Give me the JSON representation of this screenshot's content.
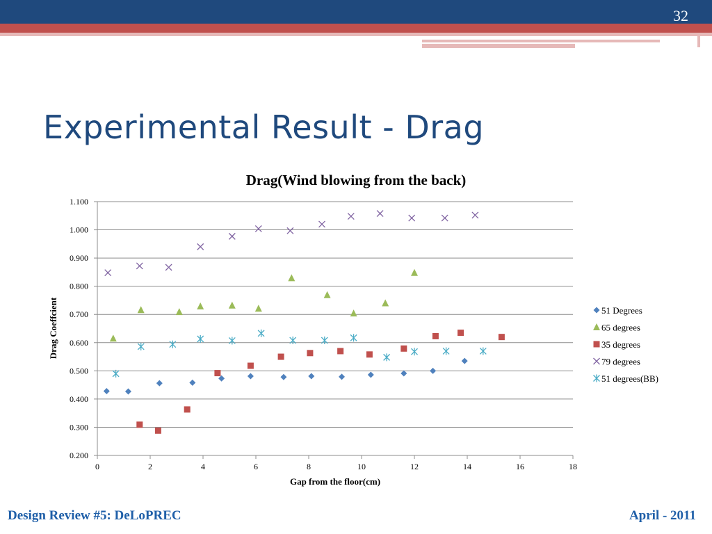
{
  "slide": {
    "title": "Experimental Result - Drag",
    "number": "32"
  },
  "footer": {
    "left": "Design Review #5: DeLoPREC",
    "right": "April - 2011"
  },
  "colors": {
    "header_dark": "#1f497d",
    "header_red": "#c0504d",
    "header_pink": "#e6b9b8",
    "title": "#1f497d",
    "footer_text": "#1f5fa8"
  },
  "chart_data": {
    "type": "scatter",
    "title": "Drag(Wind blowing from the back)",
    "xlabel": "Gap from the floor(cm)",
    "ylabel": "Drag Coeffcient",
    "xlim": [
      0,
      18
    ],
    "ylim": [
      0.2,
      1.1
    ],
    "x_ticks": [
      0,
      2,
      4,
      6,
      8,
      10,
      12,
      14,
      16,
      18
    ],
    "x_tick_labels": [
      "0",
      "2",
      "4",
      "6",
      "8",
      "10",
      "12",
      "14",
      "16",
      "18"
    ],
    "y_ticks": [
      0.2,
      0.3,
      0.4,
      0.5,
      0.6,
      0.7,
      0.8,
      0.9,
      1.0,
      1.1
    ],
    "y_tick_labels": [
      "0.200",
      "0.300",
      "0.400",
      "0.500",
      "0.600",
      "0.700",
      "0.800",
      "0.900",
      "1.000",
      "1.100"
    ],
    "grid": "horizontal",
    "legend_position": "right",
    "series": [
      {
        "name": "51 Degrees",
        "marker": "diamond",
        "color": "#4f81bd",
        "points": [
          [
            0.35,
            0.428
          ],
          [
            1.17,
            0.427
          ],
          [
            2.35,
            0.456
          ],
          [
            3.6,
            0.458
          ],
          [
            4.7,
            0.473
          ],
          [
            5.8,
            0.481
          ],
          [
            7.05,
            0.478
          ],
          [
            8.1,
            0.481
          ],
          [
            9.25,
            0.479
          ],
          [
            10.35,
            0.486
          ],
          [
            11.6,
            0.491
          ],
          [
            12.7,
            0.5
          ],
          [
            13.9,
            0.535
          ]
        ]
      },
      {
        "name": "65 degrees",
        "marker": "triangle",
        "color": "#9bbb59",
        "points": [
          [
            0.6,
            0.615
          ],
          [
            1.65,
            0.716
          ],
          [
            3.1,
            0.709
          ],
          [
            3.9,
            0.729
          ],
          [
            5.1,
            0.732
          ],
          [
            6.1,
            0.721
          ],
          [
            7.35,
            0.829
          ],
          [
            8.7,
            0.769
          ],
          [
            9.7,
            0.704
          ],
          [
            10.9,
            0.74
          ],
          [
            12.0,
            0.848
          ]
        ]
      },
      {
        "name": "35 degrees",
        "marker": "square",
        "color": "#c0504d",
        "points": [
          [
            1.6,
            0.309
          ],
          [
            2.3,
            0.288
          ],
          [
            3.4,
            0.363
          ],
          [
            4.55,
            0.492
          ],
          [
            5.8,
            0.518
          ],
          [
            6.95,
            0.55
          ],
          [
            8.05,
            0.563
          ],
          [
            9.2,
            0.57
          ],
          [
            10.3,
            0.558
          ],
          [
            11.6,
            0.579
          ],
          [
            12.8,
            0.623
          ],
          [
            13.75,
            0.635
          ],
          [
            15.3,
            0.62
          ]
        ]
      },
      {
        "name": "79 degrees",
        "marker": "x",
        "color": "#8064a2",
        "points": [
          [
            0.4,
            0.848
          ],
          [
            1.6,
            0.872
          ],
          [
            2.7,
            0.867
          ],
          [
            3.9,
            0.94
          ],
          [
            5.1,
            0.977
          ],
          [
            6.1,
            1.004
          ],
          [
            7.3,
            0.997
          ],
          [
            8.5,
            1.02
          ],
          [
            9.6,
            1.048
          ],
          [
            10.7,
            1.058
          ],
          [
            11.9,
            1.042
          ],
          [
            13.15,
            1.042
          ],
          [
            14.3,
            1.052
          ]
        ]
      },
      {
        "name": "51 degrees(BB)",
        "marker": "asterisk",
        "color": "#4bacc6",
        "points": [
          [
            0.7,
            0.49
          ],
          [
            1.65,
            0.586
          ],
          [
            2.85,
            0.594
          ],
          [
            3.9,
            0.613
          ],
          [
            5.1,
            0.607
          ],
          [
            6.2,
            0.633
          ],
          [
            7.4,
            0.608
          ],
          [
            8.6,
            0.608
          ],
          [
            9.7,
            0.617
          ],
          [
            10.95,
            0.548
          ],
          [
            12.0,
            0.568
          ],
          [
            13.2,
            0.57
          ],
          [
            14.6,
            0.57
          ]
        ]
      }
    ]
  }
}
